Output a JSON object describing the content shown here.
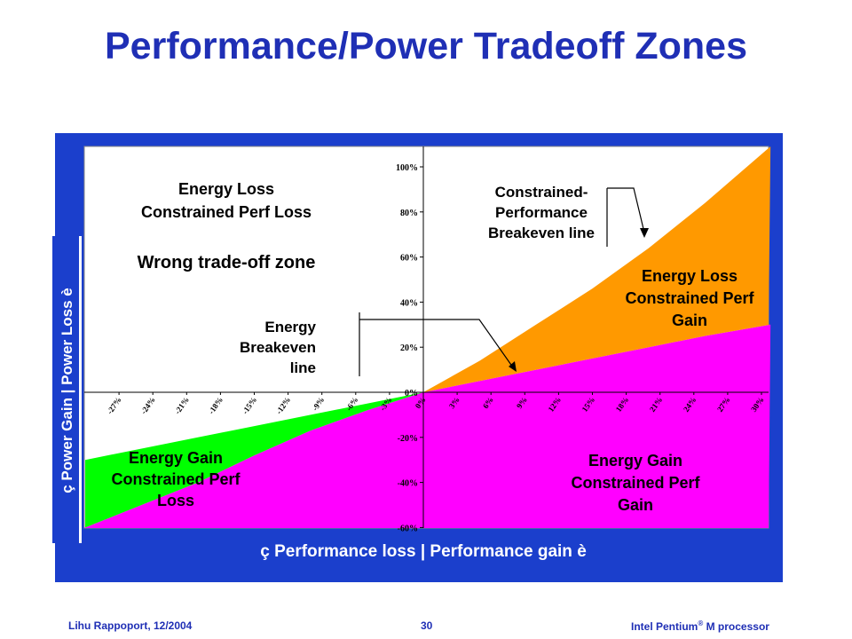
{
  "slide": {
    "title": "Performance/Power Tradeoff Zones",
    "footer_left": "Lihu Rappoport,  12/2004",
    "page_number": "30",
    "footer_right_name": "Intel Pentium",
    "footer_right_sup": "®",
    "footer_right_suffix": " M processor"
  },
  "colors": {
    "panel": "#1b3fcc",
    "title": "#1f2fb5",
    "orange": "#ff9900",
    "magenta": "#ff00ff",
    "green": "#00ff00"
  },
  "chart_data": {
    "type": "area",
    "xlabel": "ç  Performance loss   |   Performance gain è",
    "ylabel": "ç  Power Gain | Power Loss è",
    "x_ticks": [
      "-27%",
      "-24%",
      "-21%",
      "-18%",
      "-15%",
      "-12%",
      "-9%",
      "-6%",
      "-3%",
      "0%",
      "3%",
      "6%",
      "9%",
      "12%",
      "15%",
      "18%",
      "21%",
      "24%",
      "27%",
      "30%"
    ],
    "x_tick_values": [
      -27,
      -24,
      -21,
      -18,
      -15,
      -12,
      -9,
      -6,
      -3,
      0,
      3,
      6,
      9,
      12,
      15,
      18,
      21,
      24,
      27,
      30
    ],
    "y_ticks": [
      "100%",
      "80%",
      "60%",
      "40%",
      "20%",
      "0%",
      "-20%",
      "-40%",
      "-60%"
    ],
    "y_tick_values": [
      100,
      80,
      60,
      40,
      20,
      0,
      -20,
      -40,
      -60
    ],
    "xlim": [
      -30,
      30.8
    ],
    "ylim": [
      -60,
      110
    ],
    "grid": false,
    "series": [
      {
        "name": "Energy Breakeven line",
        "x": [
          -30,
          -25,
          -20,
          -15,
          -10,
          -5,
          0,
          5,
          10,
          15,
          20,
          25,
          30.8
        ],
        "y": [
          -30,
          -25,
          -20,
          -15,
          -10,
          -5,
          0,
          5,
          10,
          15,
          20,
          25,
          30
        ]
      },
      {
        "name": "Constrained-Performance Breakeven line",
        "x": [
          -30,
          -25,
          -20,
          -15,
          -10,
          -5,
          0,
          5,
          10,
          15,
          20,
          25,
          30.8
        ],
        "y": [
          -60,
          -50,
          -40,
          -28,
          -17,
          -8,
          0,
          14,
          30,
          46,
          64,
          84,
          110
        ]
      }
    ],
    "annotations": {
      "top_left": [
        "Energy Loss",
        "Constrained Perf Loss"
      ],
      "wrong_zone": "Wrong trade-off zone",
      "energy_breakeven": [
        "Energy",
        "Breakeven",
        "line"
      ],
      "constrained_breakeven": [
        "Constrained-",
        "Performance",
        "Breakeven line"
      ],
      "orange_zone": [
        "Energy Loss",
        "Constrained Perf",
        "Gain"
      ],
      "green_zone": [
        "Energy Gain",
        "Constrained Perf",
        "Loss"
      ],
      "magenta_zone": [
        "Energy Gain",
        "Constrained Perf",
        "Gain"
      ]
    }
  }
}
